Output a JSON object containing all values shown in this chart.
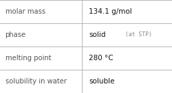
{
  "rows": [
    {
      "label": "molar mass",
      "value": "134.1 g/mol",
      "value2": null
    },
    {
      "label": "phase",
      "value": "solid",
      "value2": "(at STP)"
    },
    {
      "label": "melting point",
      "value": "280 °C",
      "value2": null
    },
    {
      "label": "solubility in water",
      "value": "soluble",
      "value2": null
    }
  ],
  "background_color": "#ffffff",
  "border_color": "#aaaaaa",
  "label_color": "#555555",
  "value_color": "#111111",
  "value2_color": "#888888",
  "label_fontsize": 7.2,
  "value_fontsize": 7.5,
  "value2_fontsize": 5.8,
  "col_split": 0.475,
  "figwidth": 2.51,
  "figheight": 1.36,
  "dpi": 100
}
